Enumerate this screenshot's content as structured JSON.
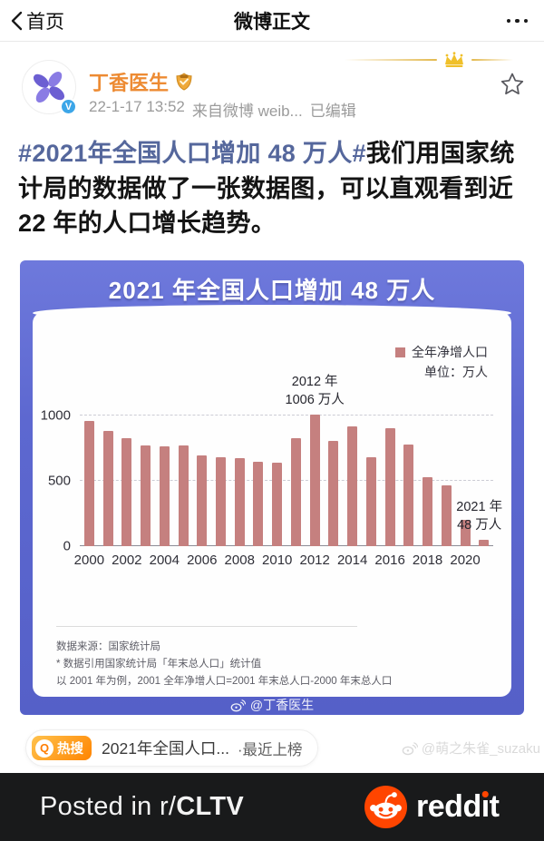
{
  "nav": {
    "back_label": "首页",
    "title": "微博正文"
  },
  "post": {
    "author": "丁香医生",
    "verified_badge": "V",
    "time": "22-1-17 13:52",
    "source": "来自微博 weib...",
    "edited_label": "已编辑",
    "hashtag": "#2021年全国人口增加 48 万人#",
    "body": "我们用国家统计局的数据做了一张数据图，可以直观看到近 22 年的人口增长趋势。"
  },
  "figure": {
    "title": "2021 年全国人口增加 48 万人",
    "legend_label": "全年净增人口",
    "unit_label": "单位：万人",
    "source_note": "数据来源：国家统计局",
    "footnote1": "* 数据引用国家统计局「年末总人口」统计值",
    "footnote2": "以 2001 年为例，2001 全年净增人口=2001 年末总人口-2000 年末总人口",
    "watermark": "@丁香医生"
  },
  "chart_data": {
    "type": "bar",
    "title": "2021 年全国人口增加 48 万人",
    "series_name": "全年净增人口",
    "unit": "万人",
    "categories": [
      2000,
      2001,
      2002,
      2003,
      2004,
      2005,
      2006,
      2007,
      2008,
      2009,
      2010,
      2011,
      2012,
      2013,
      2014,
      2015,
      2016,
      2017,
      2018,
      2019,
      2020,
      2021
    ],
    "values": [
      957,
      884,
      826,
      774,
      761,
      768,
      692,
      681,
      673,
      648,
      641,
      825,
      1006,
      804,
      920,
      680,
      906,
      779,
      530,
      467,
      204,
      48
    ],
    "ylim": [
      0,
      1000
    ],
    "yticks": [
      0,
      500,
      1000
    ],
    "xticks": [
      2000,
      2002,
      2004,
      2006,
      2008,
      2010,
      2012,
      2014,
      2016,
      2018,
      2020
    ],
    "grid": "dashed-horizontal",
    "legend_position": "top-right",
    "bar_color": "#c5807f",
    "annotations": [
      {
        "x": 2012,
        "lines": [
          "2012 年",
          "1006 万人"
        ]
      },
      {
        "x": 2021,
        "lines": [
          "2021 年",
          "48 万人"
        ]
      }
    ]
  },
  "hot_search": {
    "badge_q": "Q",
    "badge_label": "热搜",
    "topic": "2021年全国人口...",
    "status": "·最近上榜"
  },
  "outer_watermark": "@萌之朱雀_suzaku",
  "reddit": {
    "posted_prefix": "Posted in r/",
    "subreddit": "CLTV",
    "wordmark": "reddit"
  },
  "colors": {
    "author_orange": "#ed8b33",
    "hashtag_blue": "#55679c",
    "figure_blue": "#5d68d0",
    "bar_pink": "#c5807f",
    "reddit_orange": "#ff4500",
    "hot_badge_orange": "#ff8400"
  }
}
